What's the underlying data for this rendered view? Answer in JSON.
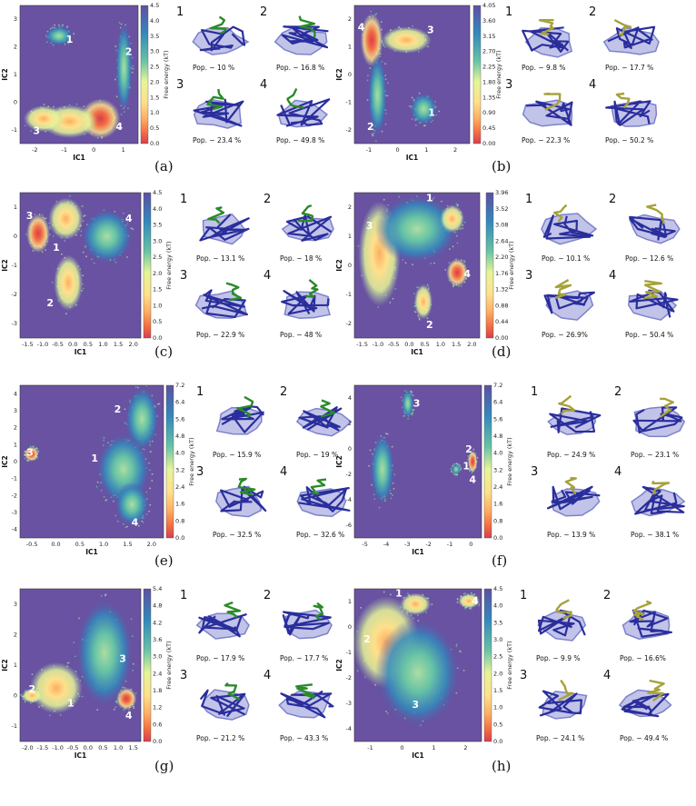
{
  "figure": {
    "xlabel": "IC1",
    "ylabel": "IC2",
    "colorbar_label": "Free energy (kT)",
    "panels": [
      {
        "caption": "(a)",
        "xticks": [
          "-2",
          "-1",
          "0",
          "1"
        ],
        "yticks": [
          "3",
          "2",
          "1",
          "0",
          "-1"
        ],
        "cbticks": [
          "4.5",
          "4.0",
          "3.5",
          "3.0",
          "2.5",
          "2.0",
          "1.5",
          "1.0",
          "0.5",
          "0.0"
        ],
        "state_labels": [
          "1",
          "2",
          "3",
          "4"
        ],
        "snapshots": [
          {
            "num": "1",
            "pop": "Pop. ~ 10 %"
          },
          {
            "num": "2",
            "pop": "Pop. ~ 16.8 %"
          },
          {
            "num": "3",
            "pop": "Pop. ~ 23.4 %"
          },
          {
            "num": "4",
            "pop": "Pop. ~ 49.8 %"
          }
        ]
      },
      {
        "caption": "(b)",
        "xticks": [
          "-1",
          "0",
          "1",
          "2"
        ],
        "yticks": [
          "2",
          "1",
          "0",
          "-1",
          "-2"
        ],
        "cbticks": [
          "4.05",
          "3.60",
          "3.15",
          "2.70",
          "2.25",
          "1.80",
          "1.35",
          "0.90",
          "0.45",
          "0.00"
        ],
        "state_labels": [
          "4",
          "3",
          "2",
          "1"
        ],
        "snapshots": [
          {
            "num": "1",
            "pop": "Pop. ~ 9.8 %"
          },
          {
            "num": "2",
            "pop": "Pop. ~ 17.7 %"
          },
          {
            "num": "3",
            "pop": "Pop. ~ 22.3 %"
          },
          {
            "num": "4",
            "pop": "Pop. ~ 50.2 %"
          }
        ]
      },
      {
        "caption": "(c)",
        "xticks": [
          "-1.5",
          "-1.0",
          "-0.5",
          "0.0",
          "0.5",
          "1.0",
          "1.5",
          "2.0"
        ],
        "yticks": [
          "1",
          "0",
          "-1",
          "-2",
          "-3"
        ],
        "cbticks": [
          "4.5",
          "4.0",
          "3.5",
          "3.0",
          "2.5",
          "2.0",
          "1.5",
          "1.0",
          "0.5",
          "0.0"
        ],
        "state_labels": [
          "3",
          "1",
          "4",
          "2"
        ],
        "snapshots": [
          {
            "num": "1",
            "pop": "Pop. ~ 13.1 %"
          },
          {
            "num": "2",
            "pop": "Pop. ~ 18 %"
          },
          {
            "num": "3",
            "pop": "Pop. ~ 22.9 %"
          },
          {
            "num": "4",
            "pop": "Pop. ~ 48 %"
          }
        ]
      },
      {
        "caption": "(d)",
        "xticks": [
          "-1.5",
          "-1.0",
          "-0.5",
          "0.0",
          "0.5",
          "1.0",
          "1.5",
          "2.0"
        ],
        "yticks": [
          "2",
          "1",
          "0",
          "-1",
          "-2"
        ],
        "cbticks": [
          "3.96",
          "3.52",
          "3.08",
          "2.64",
          "2.20",
          "1.76",
          "1.32",
          "0.88",
          "0.44",
          "0.00"
        ],
        "state_labels": [
          "1",
          "3",
          "4",
          "2"
        ],
        "snapshots": [
          {
            "num": "1",
            "pop": "Pop. ~ 10.1 %"
          },
          {
            "num": "2",
            "pop": "Pop. ~ 12.6 %"
          },
          {
            "num": "3",
            "pop": "Pop. ~ 26.9%"
          },
          {
            "num": "4",
            "pop": "Pop. ~ 50.4 %"
          }
        ]
      },
      {
        "caption": "(e)",
        "xticks": [
          "-0.5",
          "0.0",
          "0.5",
          "1.0",
          "1.5",
          "2.0"
        ],
        "yticks": [
          "4",
          "3",
          "2",
          "1",
          "0",
          "-1",
          "-2",
          "-3",
          "-4"
        ],
        "cbticks": [
          "7.2",
          "6.4",
          "5.6",
          "4.8",
          "4.0",
          "3.2",
          "2.4",
          "1.6",
          "0.8",
          "0.0"
        ],
        "state_labels": [
          "2",
          "3",
          "1",
          "4"
        ],
        "snapshots": [
          {
            "num": "1",
            "pop": "Pop. ~ 15.9 %"
          },
          {
            "num": "2",
            "pop": "Pop. ~ 19 %"
          },
          {
            "num": "3",
            "pop": "Pop. ~ 32.5 %"
          },
          {
            "num": "4",
            "pop": "Pop. ~ 32.6 %"
          }
        ]
      },
      {
        "caption": "(f)",
        "xticks": [
          "-5",
          "-4",
          "-3",
          "-2",
          "-1",
          "0"
        ],
        "yticks": [
          "4",
          "2",
          "0",
          "-2",
          "-4",
          "-6"
        ],
        "cbticks": [
          "7.2",
          "6.4",
          "5.6",
          "4.8",
          "4.0",
          "3.2",
          "2.4",
          "1.6",
          "0.8",
          "0.0"
        ],
        "state_labels": [
          "3",
          "2",
          "1",
          "4"
        ],
        "snapshots": [
          {
            "num": "1",
            "pop": "Pop. ~ 24.9 %"
          },
          {
            "num": "2",
            "pop": "Pop. ~ 23.1 %"
          },
          {
            "num": "3",
            "pop": "Pop. ~ 13.9 %"
          },
          {
            "num": "4",
            "pop": "Pop. ~ 38.1 %"
          }
        ]
      },
      {
        "caption": "(g)",
        "xticks": [
          "-2.0",
          "-1.5",
          "-1.0",
          "-0.5",
          "0.0",
          "0.5",
          "1.0",
          "1.5"
        ],
        "yticks": [
          "3",
          "2",
          "1",
          "0",
          "-1"
        ],
        "cbticks": [
          "5.4",
          "4.8",
          "4.2",
          "3.6",
          "3.0",
          "2.4",
          "1.8",
          "1.2",
          "0.6",
          "0.0"
        ],
        "state_labels": [
          "3",
          "2",
          "1",
          "4"
        ],
        "snapshots": [
          {
            "num": "1",
            "pop": "Pop. ~ 17.9 %"
          },
          {
            "num": "2",
            "pop": "Pop. ~ 17.7 %"
          },
          {
            "num": "3",
            "pop": "Pop. ~ 21.2 %"
          },
          {
            "num": "4",
            "pop": "Pop. ~ 43.3 %"
          }
        ]
      },
      {
        "caption": "(h)",
        "xticks": [
          "-1",
          "0",
          "1",
          "2"
        ],
        "yticks": [
          "1",
          "0",
          "-1",
          "-2",
          "-3",
          "-4"
        ],
        "cbticks": [
          "4.5",
          "4.0",
          "3.5",
          "3.0",
          "2.5",
          "2.0",
          "1.5",
          "1.0",
          "0.5",
          "0.0"
        ],
        "state_labels": [
          "1",
          "4",
          "2",
          "3"
        ],
        "snapshots": [
          {
            "num": "1",
            "pop": "Pop. ~ 9.9 %"
          },
          {
            "num": "2",
            "pop": "Pop. ~ 16.6%"
          },
          {
            "num": "3",
            "pop": "Pop. ~ 24.1 %"
          },
          {
            "num": "4",
            "pop": "Pop. ~ 49.4 %"
          }
        ]
      }
    ]
  },
  "colors": {
    "background": "#6a52a2",
    "protein": "#2a2e9c",
    "ligand_green": "#2a8a2a",
    "ligand_olive": "#a6a23a"
  }
}
